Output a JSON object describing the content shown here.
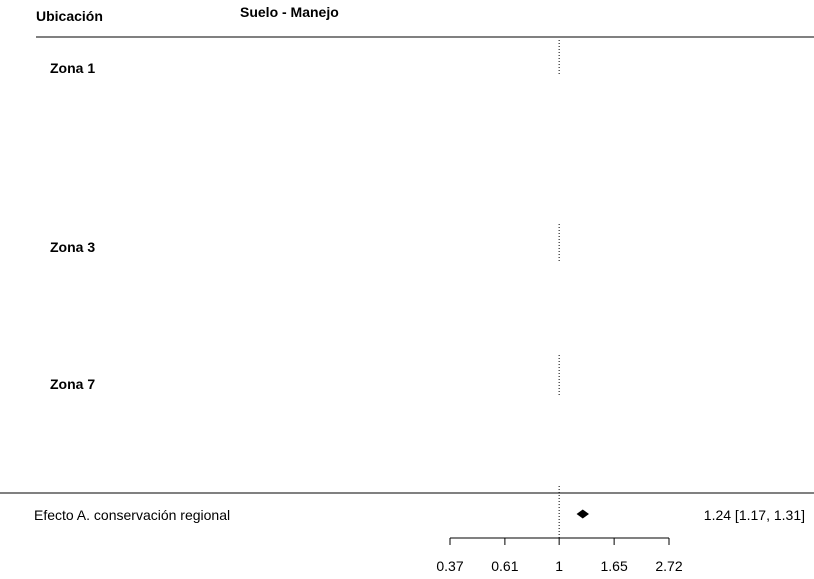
{
  "header": {
    "col1": "Ubicación",
    "col2": "Suelo - Manejo"
  },
  "zones": [
    {
      "label": "Zona 1"
    },
    {
      "label": "Zona 3"
    },
    {
      "label": "Zona 7"
    }
  ],
  "summary": {
    "label": "Efecto A. conservación regional",
    "text": "1.24 [1.17, 1.31]"
  },
  "chart_data": {
    "type": "forest",
    "scale": "log",
    "reference_line": 1,
    "xlim": [
      0.37,
      2.72
    ],
    "ticks": [
      {
        "value": 0.37,
        "label": "0.37"
      },
      {
        "value": 0.61,
        "label": "0.61"
      },
      {
        "value": 1,
        "label": "1"
      },
      {
        "value": 1.65,
        "label": "1.65"
      },
      {
        "value": 2.72,
        "label": "2.72"
      }
    ],
    "summary_estimate": {
      "estimate": 1.24,
      "ci_low": 1.17,
      "ci_high": 1.31
    }
  }
}
